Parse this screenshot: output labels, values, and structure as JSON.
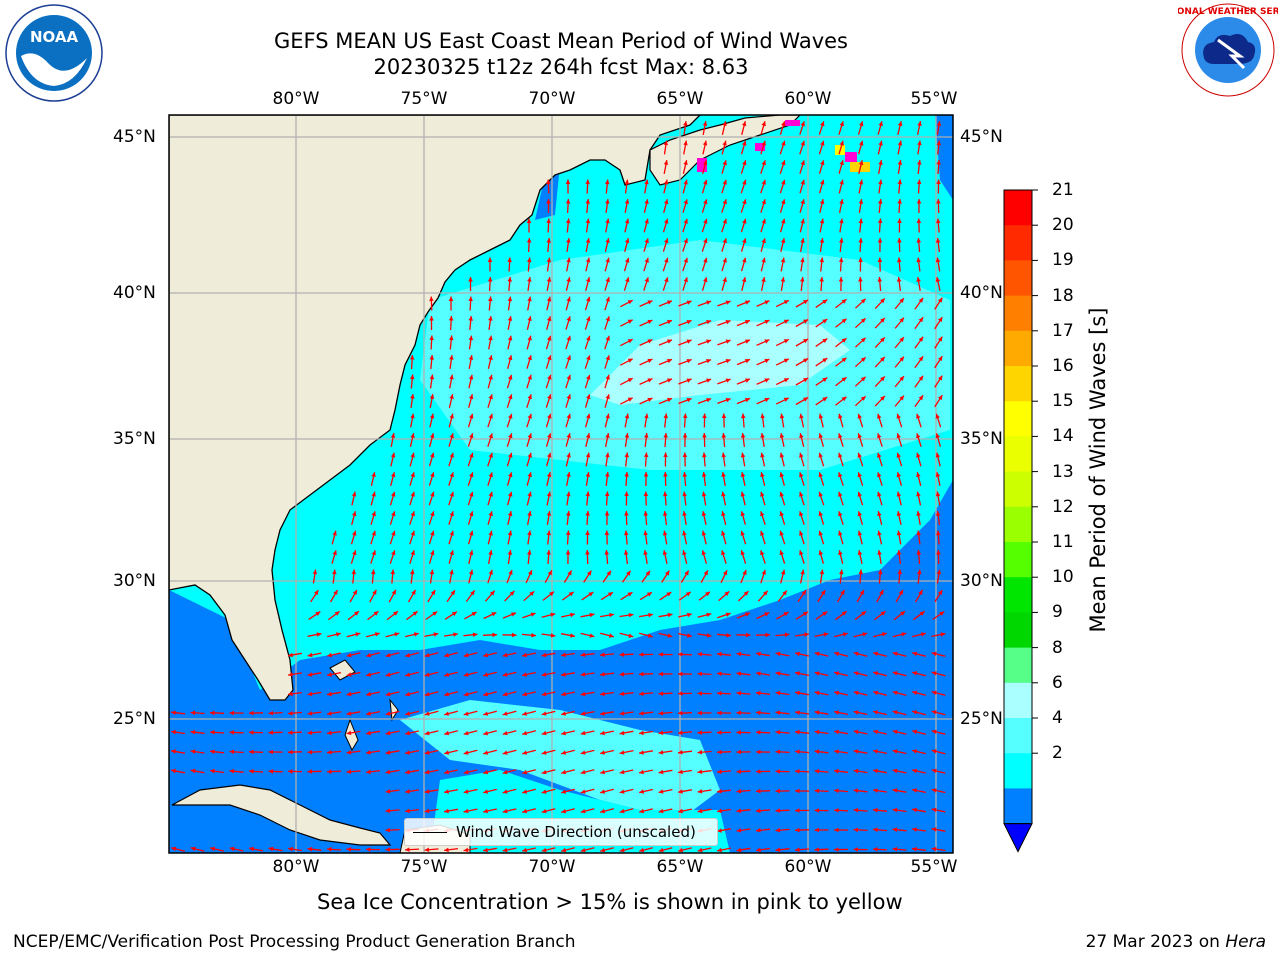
{
  "title_line1": "GEFS MEAN US East Coast Mean Period of Wind Waves",
  "title_line2": "20230325 t12z 264h fcst   Max: 8.63",
  "lon_labels": [
    "80°W",
    "75°W",
    "70°W",
    "65°W",
    "60°W",
    "55°W"
  ],
  "lat_labels": [
    "45°N",
    "40°N",
    "35°N",
    "30°N",
    "25°N"
  ],
  "colorbar": {
    "label": "Mean Period of Wind Waves [s]",
    "ticks": [
      "21",
      "20",
      "19",
      "18",
      "17",
      "16",
      "15",
      "14",
      "13",
      "12",
      "11",
      "10",
      "9",
      "8",
      "6",
      "4",
      "2"
    ],
    "colors": [
      "#ff0000",
      "#ff2a00",
      "#ff5500",
      "#ff8000",
      "#ffaa00",
      "#ffd500",
      "#ffff00",
      "#eaff00",
      "#ccff00",
      "#9aff00",
      "#55ff00",
      "#00e600",
      "#00d600",
      "#55ff88",
      "#aaffff",
      "#55ffff",
      "#00ffff",
      "#0080ff"
    ],
    "under_color": "#0000ff"
  },
  "legend_text": "Wind Wave Direction (unscaled)",
  "note": "Sea Ice Concentration > 15% is shown in pink to yellow",
  "footer_left": "NCEP/EMC/Verification Post Processing Product Generation Branch",
  "footer_date": "27 Mar 2023 on ",
  "footer_host": "Hera",
  "logo_left_text": "NOAA",
  "logo_right_text": "NATIONAL WEATHER SERVICE",
  "colors": {
    "land": "#efedd9",
    "ocean_main": "#00ffff",
    "ocean_light": "#55ffff",
    "ocean_pale": "#aaffff",
    "ocean_low": "#0080ff",
    "arrow": "#ff0000",
    "grid": "#b0b0b0"
  }
}
